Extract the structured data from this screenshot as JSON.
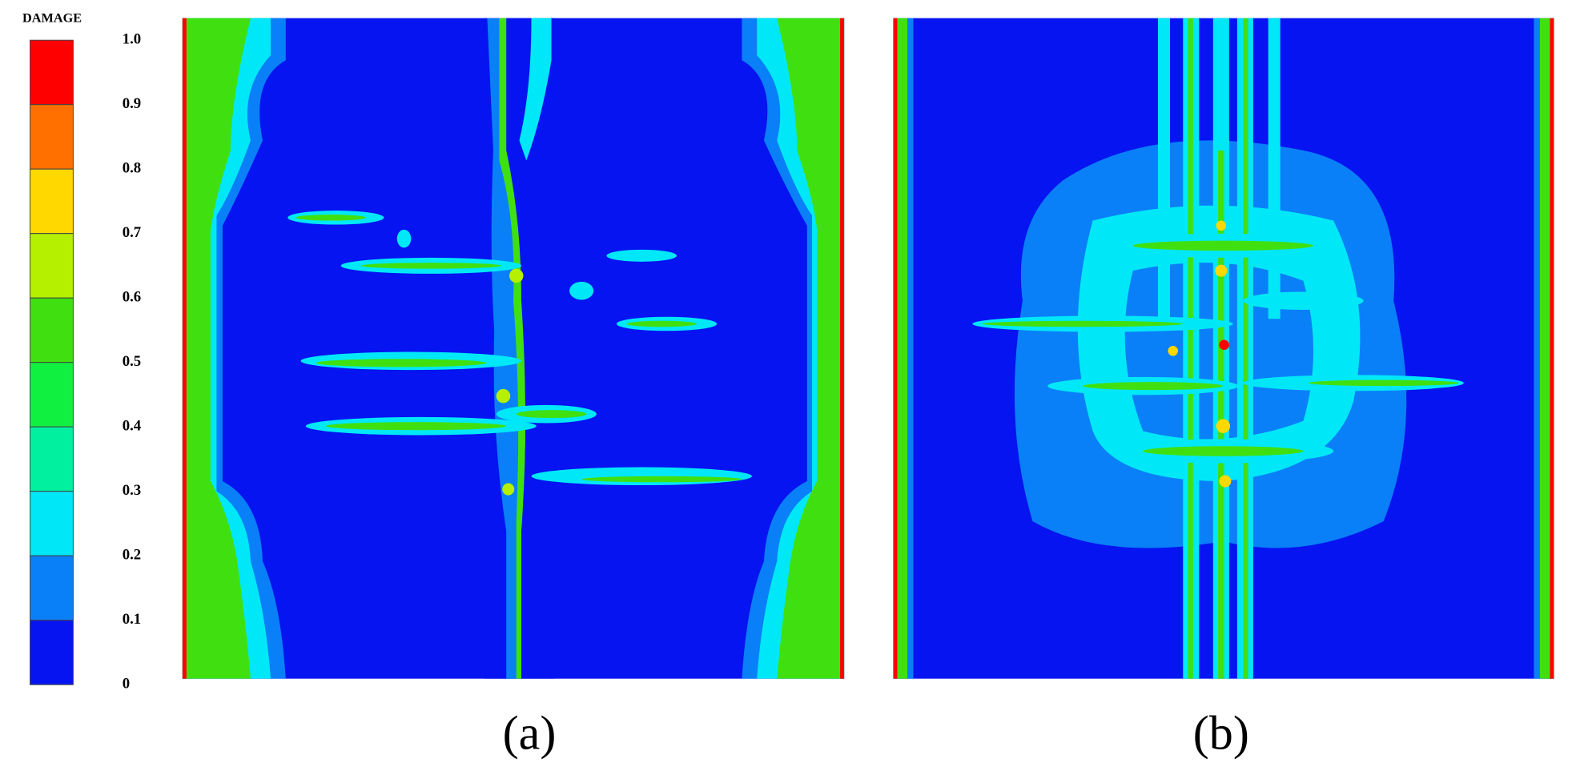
{
  "colorbar": {
    "title": "DAMAGE",
    "labels": [
      "1.0",
      "0.9",
      "0.8",
      "0.7",
      "0.6",
      "0.5",
      "0.4",
      "0.3",
      "0.2",
      "0.1",
      "0"
    ],
    "colors": [
      "#ff0000",
      "#ff7000",
      "#ffd800",
      "#b4f000",
      "#40e010",
      "#10f040",
      "#00f0a0",
      "#00e8f8",
      "#0a80f8",
      "#0514f0"
    ]
  },
  "panels": [
    {
      "label": "(a)"
    },
    {
      "label": "(b)"
    }
  ]
}
